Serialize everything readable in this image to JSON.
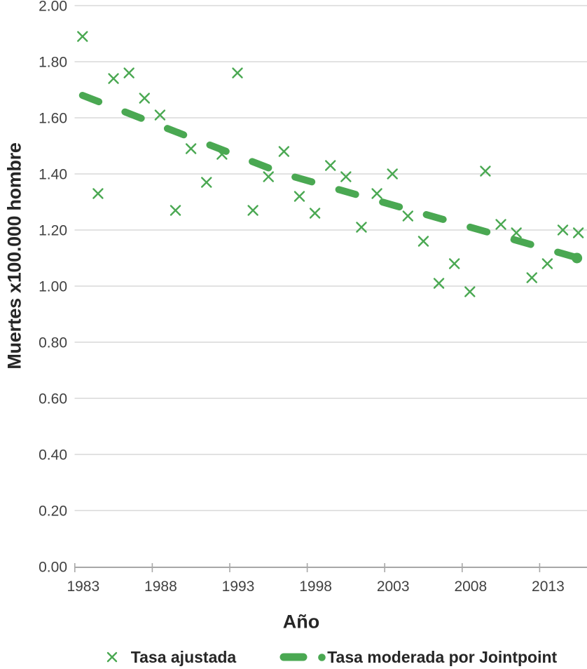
{
  "chart_data": {
    "type": "scatter",
    "title": "",
    "xlabel": "Año",
    "ylabel": "Muertes x100.000 hombre",
    "x_tick_labels": [
      "1983",
      "1988",
      "1993",
      "1998",
      "2003",
      "2008",
      "2013"
    ],
    "y_ticks": [
      2.0,
      1.8,
      1.6,
      1.4,
      1.2,
      1.0,
      0.8,
      0.6,
      0.4,
      0.2,
      0.0
    ],
    "ylim": [
      0.0,
      2.0
    ],
    "xlim": [
      1982.5,
      2015.5
    ],
    "grid": "horizontal-only",
    "legend_position": "bottom",
    "series": [
      {
        "name": "Tasa ajustada",
        "kind": "scatter",
        "marker": "x",
        "x": [
          1983,
          1984,
          1985,
          1986,
          1987,
          1988,
          1989,
          1990,
          1991,
          1992,
          1993,
          1994,
          1995,
          1996,
          1997,
          1998,
          1999,
          2000,
          2001,
          2002,
          2003,
          2004,
          2005,
          2006,
          2007,
          2008,
          2009,
          2010,
          2011,
          2012,
          2013,
          2014,
          2015
        ],
        "y": [
          1.89,
          1.33,
          1.74,
          1.76,
          1.67,
          1.61,
          1.27,
          1.49,
          1.37,
          1.47,
          1.76,
          1.27,
          1.39,
          1.48,
          1.32,
          1.26,
          1.43,
          1.39,
          1.21,
          1.33,
          1.4,
          1.25,
          1.16,
          1.01,
          1.08,
          0.98,
          1.41,
          1.22,
          1.19,
          1.03,
          1.08,
          1.2,
          1.19
        ]
      },
      {
        "name": "Tasa moderada por Jointpoint",
        "kind": "dashed-trend-line",
        "points": [
          [
            1983,
            1.68
          ],
          [
            1996,
            1.4
          ],
          [
            2015,
            1.1
          ]
        ],
        "end_dot": [
          2015,
          1.1
        ]
      }
    ]
  },
  "colors": {
    "series_green": "#4aa852",
    "gridline": "#d9d9d9",
    "axis": "#a8a8a8",
    "tick_label": "#414141",
    "title_text": "#262626"
  }
}
